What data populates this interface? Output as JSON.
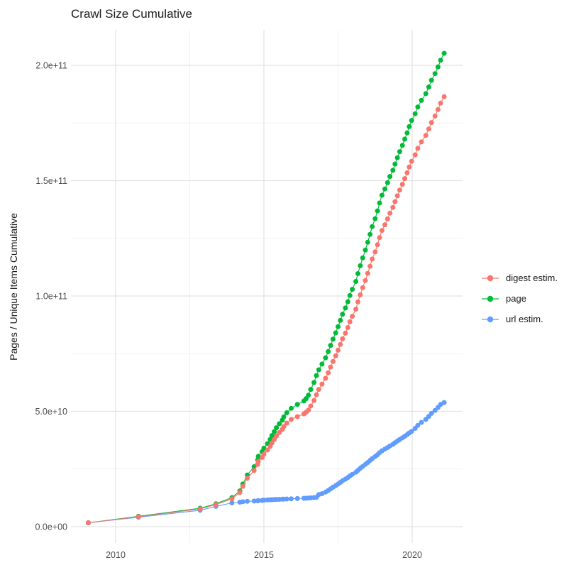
{
  "page": {
    "background_color": "#ffffff"
  },
  "chart_data": {
    "type": "line",
    "title": "Crawl Size Cumulative",
    "xlabel": "",
    "ylabel": "Pages / Unique Items Cumulative",
    "y_unit": "billions (1e9 items); y tick 2.0e+11 = 200 billion",
    "x_unit": "year (decimal)",
    "legend_position": "right-center",
    "grid": {
      "on": true,
      "major_color": "#e3e3e3",
      "minor_color": "#efefef",
      "background": "#ffffff"
    },
    "x_ticks": {
      "major": [
        2010,
        2015,
        2020
      ],
      "labels": [
        "2010",
        "2015",
        "2020"
      ],
      "minor": [
        2012.5,
        2017.5
      ]
    },
    "y_ticks": {
      "major_billions": [
        0,
        50,
        100,
        150,
        200
      ],
      "labels": [
        "0.0e+00",
        "5.0e+10",
        "1.0e+11",
        "1.5e+11",
        "2.0e+11"
      ],
      "minor_billions": [
        25,
        75,
        125,
        175
      ]
    },
    "xlim": [
      2008.5,
      2021.7
    ],
    "ylim_billions": [
      -7,
      217
    ],
    "x": [
      2009.08,
      2010.77,
      2012.85,
      2013.38,
      2013.92,
      2014.19,
      2014.29,
      2014.44,
      2014.67,
      2014.79,
      2014.81,
      2014.94,
      2015.0,
      2015.12,
      2015.21,
      2015.27,
      2015.35,
      2015.42,
      2015.52,
      2015.62,
      2015.67,
      2015.77,
      2015.92,
      2016.13,
      2016.35,
      2016.42,
      2016.5,
      2016.58,
      2016.69,
      2016.77,
      2016.85,
      2016.96,
      2017.08,
      2017.17,
      2017.25,
      2017.33,
      2017.42,
      2017.5,
      2017.58,
      2017.65,
      2017.75,
      2017.83,
      2017.9,
      2017.98,
      2018.1,
      2018.17,
      2018.25,
      2018.33,
      2018.42,
      2018.5,
      2018.58,
      2018.65,
      2018.75,
      2018.83,
      2018.9,
      2018.98,
      2019.08,
      2019.17,
      2019.25,
      2019.35,
      2019.42,
      2019.5,
      2019.58,
      2019.67,
      2019.75,
      2019.83,
      2019.9,
      2019.98,
      2020.1,
      2020.19,
      2020.31,
      2020.46,
      2020.56,
      2020.65,
      2020.77,
      2020.87,
      2020.96,
      2021.08
    ],
    "series": [
      {
        "name": "digest estim.",
        "color": "#F8766D",
        "values_billions": [
          1.7,
          4.3,
          7.7,
          9.6,
          12.1,
          14.8,
          17.5,
          21.0,
          24.3,
          27.0,
          28.3,
          30.0,
          31.4,
          33.2,
          34.8,
          36.3,
          37.8,
          39.3,
          40.8,
          42.2,
          43.4,
          44.9,
          46.5,
          47.7,
          48.9,
          49.6,
          50.5,
          52.3,
          54.7,
          57.2,
          59.5,
          61.8,
          64.3,
          66.7,
          69.2,
          71.6,
          74.1,
          76.5,
          79.0,
          81.4,
          83.9,
          86.3,
          88.8,
          91.2,
          94.3,
          97.4,
          100.5,
          103.6,
          106.7,
          109.8,
          112.9,
          116.0,
          119.1,
          122.2,
          125.3,
          128.4,
          130.9,
          133.4,
          135.9,
          138.4,
          140.9,
          143.4,
          145.9,
          148.4,
          150.9,
          153.4,
          155.9,
          158.4,
          161.2,
          164.0,
          166.8,
          169.6,
          172.4,
          175.2,
          178.0,
          180.8,
          183.6,
          186.4
        ]
      },
      {
        "name": "page",
        "color": "#00BA38",
        "values_billions": [
          1.7,
          4.5,
          8.0,
          9.9,
          12.6,
          15.5,
          18.5,
          22.4,
          26.0,
          29.0,
          30.5,
          32.5,
          34.0,
          36.0,
          37.8,
          39.5,
          41.2,
          42.9,
          44.6,
          46.2,
          47.6,
          49.4,
          51.3,
          53.0,
          54.5,
          55.5,
          57.0,
          59.5,
          62.5,
          65.5,
          68.0,
          70.5,
          73.2,
          75.9,
          78.6,
          81.3,
          84.0,
          86.7,
          89.4,
          92.1,
          94.8,
          97.5,
          100.2,
          102.9,
          106.3,
          109.7,
          113.1,
          116.5,
          119.9,
          123.3,
          126.7,
          130.1,
          133.5,
          136.9,
          140.3,
          143.7,
          146.4,
          149.1,
          151.8,
          154.5,
          157.2,
          159.9,
          162.6,
          165.3,
          168.0,
          170.7,
          173.4,
          176.1,
          179.0,
          181.9,
          184.8,
          187.7,
          190.6,
          193.5,
          196.4,
          199.3,
          202.2,
          205.2
        ]
      },
      {
        "name": "url estim.",
        "color": "#619CFF",
        "values_billions": [
          1.7,
          4.1,
          7.1,
          8.8,
          10.3,
          10.6,
          10.8,
          11.0,
          11.1,
          11.2,
          11.3,
          11.4,
          11.5,
          11.6,
          11.65,
          11.7,
          11.75,
          11.8,
          11.85,
          11.9,
          11.95,
          12.0,
          12.1,
          12.2,
          12.3,
          12.35,
          12.4,
          12.5,
          12.6,
          12.7,
          13.9,
          14.3,
          15.0,
          15.7,
          16.4,
          17.1,
          17.8,
          18.5,
          19.2,
          19.9,
          20.6,
          21.3,
          22.0,
          22.7,
          23.6,
          24.4,
          25.3,
          26.1,
          27.0,
          27.8,
          28.7,
          29.5,
          30.4,
          31.2,
          32.1,
          32.9,
          33.6,
          34.3,
          35.0,
          35.7,
          36.4,
          37.1,
          37.8,
          38.5,
          39.2,
          39.9,
          40.6,
          41.3,
          42.6,
          43.9,
          45.2,
          46.5,
          47.8,
          49.1,
          50.4,
          51.7,
          53.0,
          53.8
        ]
      }
    ],
    "draw_order_indices": [
      2,
      1,
      0
    ]
  }
}
